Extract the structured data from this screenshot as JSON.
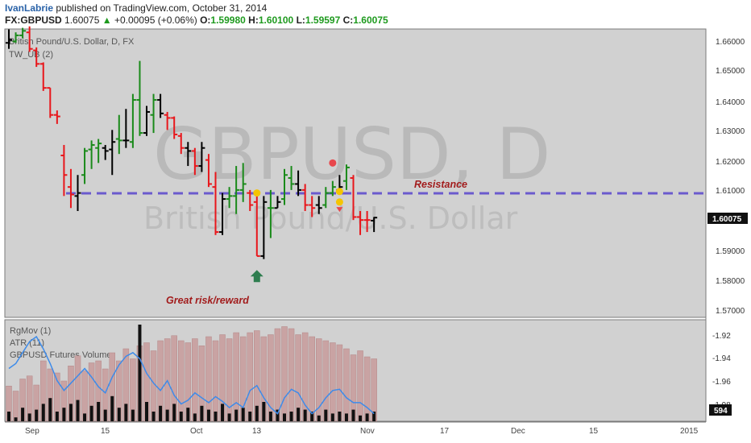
{
  "header": {
    "author": "IvanLabrie",
    "published_text": "published on TradingView.com, October 31, 2014",
    "symbol": "FX:GBPUSD",
    "last": "1.60075",
    "change_arrow": "▲",
    "change": "+0.00095 (+0.06%)",
    "o_label": "O:",
    "o_value": "1.59980",
    "h_label": "H:",
    "h_value": "1.60100",
    "l_label": "L:",
    "l_value": "1.59597",
    "c_label": "C:",
    "c_value": "1.60075"
  },
  "main_pane": {
    "legend_title": "British Pound/U.S. Dollar, D, FX",
    "legend_indicator": "TW_UB (2)",
    "watermark_symbol": "GBPUSD, D",
    "watermark_name": "British Pound/U.S. Dollar",
    "price_tag": "1.60075",
    "y_ticks": [
      "1.66000",
      "1.65000",
      "1.64000",
      "1.63000",
      "1.62000",
      "1.61000",
      "1.59000",
      "1.58000",
      "1.57000"
    ],
    "annotations": {
      "resistance": "Resistance",
      "risk": "Great risk/reward"
    }
  },
  "lower_pane": {
    "legend": [
      "RgMov (1)",
      "ATR (11)",
      "GBPUSD Futures Volume"
    ],
    "y_ticks": [
      "-1.92",
      "-1.94",
      "-1.96",
      "-1.98"
    ],
    "volume_tag": "594"
  },
  "x_ticks": [
    "Sep",
    "15",
    "Oct",
    "13",
    "Nov",
    "17",
    "Dec",
    "15",
    "2015"
  ],
  "colors": {
    "background": "#d1d1d1",
    "up_bar": "#1a8a1a",
    "down_bar": "#e8161b",
    "neutral_bar": "#000000",
    "resistance_line": "#6a5acd",
    "volume_bar": "#c9a3a3",
    "atr_line": "#3d8bea",
    "annotation": "#a21c1c"
  },
  "chart_data": {
    "type": "ohlc",
    "title": "British Pound/U.S. Dollar, D, FX",
    "ylim": [
      1.565,
      1.665
    ],
    "resistance_level": 1.6089,
    "bars": [
      {
        "o": 1.659,
        "h": 1.6635,
        "l": 1.657,
        "c": 1.66,
        "color": "neutral"
      },
      {
        "o": 1.6595,
        "h": 1.6625,
        "l": 1.659,
        "c": 1.6615,
        "color": "up"
      },
      {
        "o": 1.6615,
        "h": 1.664,
        "l": 1.6605,
        "c": 1.663,
        "color": "up"
      },
      {
        "o": 1.6625,
        "h": 1.6645,
        "l": 1.656,
        "c": 1.657,
        "color": "down"
      },
      {
        "o": 1.6565,
        "h": 1.6575,
        "l": 1.651,
        "c": 1.652,
        "color": "down"
      },
      {
        "o": 1.652,
        "h": 1.6525,
        "l": 1.643,
        "c": 1.644,
        "color": "down"
      },
      {
        "o": 1.644,
        "h": 1.644,
        "l": 1.634,
        "c": 1.635,
        "color": "down"
      },
      {
        "o": 1.635,
        "h": 1.6365,
        "l": 1.632,
        "c": 1.6345,
        "color": "down"
      },
      {
        "o": 1.6215,
        "h": 1.625,
        "l": 1.608,
        "c": 1.615,
        "color": "down"
      },
      {
        "o": 1.611,
        "h": 1.617,
        "l": 1.604,
        "c": 1.6085,
        "color": "down"
      },
      {
        "o": 1.608,
        "h": 1.615,
        "l": 1.603,
        "c": 1.609,
        "color": "neutral"
      },
      {
        "o": 1.615,
        "h": 1.624,
        "l": 1.612,
        "c": 1.623,
        "color": "up"
      },
      {
        "o": 1.6235,
        "h": 1.6265,
        "l": 1.617,
        "c": 1.625,
        "color": "up"
      },
      {
        "o": 1.624,
        "h": 1.627,
        "l": 1.619,
        "c": 1.6255,
        "color": "up"
      },
      {
        "o": 1.624,
        "h": 1.625,
        "l": 1.62,
        "c": 1.623,
        "color": "neutral"
      },
      {
        "o": 1.6235,
        "h": 1.63,
        "l": 1.615,
        "c": 1.626,
        "color": "neutral"
      },
      {
        "o": 1.627,
        "h": 1.635,
        "l": 1.622,
        "c": 1.6265,
        "color": "up"
      },
      {
        "o": 1.6265,
        "h": 1.637,
        "l": 1.624,
        "c": 1.6265,
        "color": "neutral"
      },
      {
        "o": 1.626,
        "h": 1.642,
        "l": 1.624,
        "c": 1.64,
        "color": "up"
      },
      {
        "o": 1.64,
        "h": 1.653,
        "l": 1.628,
        "c": 1.629,
        "color": "up"
      },
      {
        "o": 1.629,
        "h": 1.638,
        "l": 1.628,
        "c": 1.636,
        "color": "neutral"
      },
      {
        "o": 1.635,
        "h": 1.642,
        "l": 1.629,
        "c": 1.64,
        "color": "up"
      },
      {
        "o": 1.64,
        "h": 1.642,
        "l": 1.634,
        "c": 1.6355,
        "color": "neutral"
      },
      {
        "o": 1.635,
        "h": 1.636,
        "l": 1.63,
        "c": 1.634,
        "color": "down"
      },
      {
        "o": 1.634,
        "h": 1.6345,
        "l": 1.627,
        "c": 1.6285,
        "color": "down"
      },
      {
        "o": 1.628,
        "h": 1.629,
        "l": 1.622,
        "c": 1.624,
        "color": "down"
      },
      {
        "o": 1.624,
        "h": 1.626,
        "l": 1.618,
        "c": 1.623,
        "color": "neutral"
      },
      {
        "o": 1.623,
        "h": 1.624,
        "l": 1.615,
        "c": 1.618,
        "color": "down"
      },
      {
        "o": 1.618,
        "h": 1.626,
        "l": 1.616,
        "c": 1.624,
        "color": "neutral"
      },
      {
        "o": 1.62,
        "h": 1.622,
        "l": 1.611,
        "c": 1.612,
        "color": "down"
      },
      {
        "o": 1.611,
        "h": 1.616,
        "l": 1.595,
        "c": 1.596,
        "color": "down"
      },
      {
        "o": 1.596,
        "h": 1.609,
        "l": 1.595,
        "c": 1.607,
        "color": "neutral"
      },
      {
        "o": 1.607,
        "h": 1.611,
        "l": 1.604,
        "c": 1.608,
        "color": "up"
      },
      {
        "o": 1.608,
        "h": 1.618,
        "l": 1.602,
        "c": 1.61,
        "color": "up"
      },
      {
        "o": 1.61,
        "h": 1.619,
        "l": 1.606,
        "c": 1.612,
        "color": "up"
      },
      {
        "o": 1.609,
        "h": 1.61,
        "l": 1.603,
        "c": 1.605,
        "color": "down"
      },
      {
        "o": 1.606,
        "h": 1.61,
        "l": 1.588,
        "c": 1.588,
        "color": "down"
      },
      {
        "o": 1.588,
        "h": 1.608,
        "l": 1.587,
        "c": 1.606,
        "color": "neutral"
      },
      {
        "o": 1.604,
        "h": 1.61,
        "l": 1.594,
        "c": 1.604,
        "color": "up"
      },
      {
        "o": 1.604,
        "h": 1.608,
        "l": 1.604,
        "c": 1.606,
        "color": "neutral"
      },
      {
        "o": 1.607,
        "h": 1.617,
        "l": 1.605,
        "c": 1.615,
        "color": "up"
      },
      {
        "o": 1.614,
        "h": 1.618,
        "l": 1.61,
        "c": 1.612,
        "color": "up"
      },
      {
        "o": 1.612,
        "h": 1.6165,
        "l": 1.608,
        "c": 1.61,
        "color": "neutral"
      },
      {
        "o": 1.61,
        "h": 1.612,
        "l": 1.603,
        "c": 1.605,
        "color": "down"
      },
      {
        "o": 1.605,
        "h": 1.608,
        "l": 1.601,
        "c": 1.604,
        "color": "down"
      },
      {
        "o": 1.605,
        "h": 1.608,
        "l": 1.602,
        "c": 1.604,
        "color": "neutral"
      },
      {
        "o": 1.605,
        "h": 1.611,
        "l": 1.604,
        "c": 1.609,
        "color": "up"
      },
      {
        "o": 1.609,
        "h": 1.613,
        "l": 1.608,
        "c": 1.611,
        "color": "up"
      },
      {
        "o": 1.61,
        "h": 1.615,
        "l": 1.6085,
        "c": 1.611,
        "color": "neutral"
      },
      {
        "o": 1.613,
        "h": 1.6185,
        "l": 1.61,
        "c": 1.6175,
        "color": "up"
      },
      {
        "o": 1.614,
        "h": 1.615,
        "l": 1.6,
        "c": 1.601,
        "color": "down"
      },
      {
        "o": 1.601,
        "h": 1.603,
        "l": 1.595,
        "c": 1.6,
        "color": "down"
      },
      {
        "o": 1.6,
        "h": 1.603,
        "l": 1.596,
        "c": 1.6,
        "color": "down"
      },
      {
        "o": 1.5998,
        "h": 1.601,
        "l": 1.596,
        "c": 1.6008,
        "color": "neutral"
      }
    ],
    "markers": [
      {
        "bar": 36,
        "price": 1.609,
        "shape": "circle",
        "color": "#f5c400"
      },
      {
        "bar": 48,
        "price": 1.6095,
        "shape": "circle",
        "color": "#f5c400"
      },
      {
        "bar": 48,
        "price": 1.606,
        "shape": "circle",
        "color": "#f5c400"
      },
      {
        "bar": 47,
        "price": 1.619,
        "shape": "circle",
        "color": "#e8474c"
      },
      {
        "bar": 48,
        "price": 1.6035,
        "shape": "triangle-down",
        "color": "#e8474c"
      },
      {
        "bar": 36,
        "price": 1.5812,
        "shape": "arrow-up",
        "color": "#2e7d4f"
      }
    ],
    "volume": [
      35,
      30,
      42,
      45,
      36,
      60,
      52,
      48,
      40,
      55,
      65,
      50,
      58,
      60,
      52,
      68,
      60,
      72,
      62,
      75,
      78,
      70,
      80,
      82,
      85,
      80,
      78,
      82,
      75,
      84,
      80,
      86,
      82,
      88,
      84,
      88,
      90,
      84,
      86,
      92,
      94,
      92,
      86,
      88,
      84,
      82,
      80,
      78,
      76,
      72,
      66,
      70,
      64,
      62
    ],
    "rgmov": [
      10,
      4,
      14,
      8,
      12,
      18,
      24,
      10,
      14,
      18,
      22,
      8,
      16,
      20,
      12,
      26,
      14,
      18,
      12,
      100,
      20,
      10,
      16,
      12,
      18,
      10,
      14,
      8,
      16,
      12,
      10,
      18,
      8,
      12,
      14,
      10,
      16,
      20,
      10,
      12,
      8,
      10,
      14,
      12,
      10,
      6,
      12,
      8,
      10,
      8,
      12,
      6,
      8,
      10
    ],
    "atr": [
      -1.948,
      -1.944,
      -1.935,
      -1.926,
      -1.922,
      -1.932,
      -1.944,
      -1.958,
      -1.966,
      -1.96,
      -1.954,
      -1.948,
      -1.955,
      -1.963,
      -1.968,
      -1.955,
      -1.945,
      -1.938,
      -1.935,
      -1.94,
      -1.952,
      -1.96,
      -1.966,
      -1.958,
      -1.97,
      -1.977,
      -1.974,
      -1.968,
      -1.972,
      -1.976,
      -1.971,
      -1.975,
      -1.98,
      -1.976,
      -1.98,
      -1.966,
      -1.962,
      -1.972,
      -1.98,
      -1.985,
      -1.972,
      -1.965,
      -1.968,
      -1.978,
      -1.985,
      -1.98,
      -1.972,
      -1.966,
      -1.965,
      -1.972,
      -1.976,
      -1.976,
      -1.98,
      -1.985
    ]
  }
}
